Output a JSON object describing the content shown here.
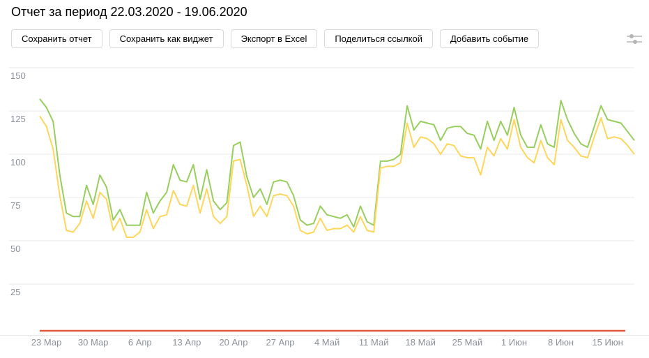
{
  "page": {
    "title": "Отчет за период 22.03.2020 - 19.06.2020"
  },
  "toolbar": {
    "buttons": [
      {
        "label": "Сохранить отчет"
      },
      {
        "label": "Сохранить как виджет"
      },
      {
        "label": "Экспорт в Excel"
      },
      {
        "label": "Поделиться ссылкой"
      },
      {
        "label": "Добавить событие"
      }
    ],
    "settings_icon": "sliders-icon",
    "icon_color": "#b5b5b5"
  },
  "chart_data": {
    "type": "line",
    "title": "",
    "xlabel": "",
    "ylabel": "",
    "period_start": "22.03.2020",
    "period_end": "19.06.2020",
    "num_days": 90,
    "ylim": [
      0,
      150
    ],
    "y_ticks": [
      25,
      50,
      75,
      100,
      125,
      150
    ],
    "x_tick_labels": [
      "23 Мар",
      "30 Мар",
      "6 Апр",
      "13 Апр",
      "20 Апр",
      "27 Апр",
      "4 Май",
      "11 Май",
      "18 Май",
      "25 Май",
      "1 Июн",
      "8 Июн",
      "15 Июн"
    ],
    "x_tick_day_indices": [
      1,
      8,
      15,
      22,
      29,
      36,
      43,
      50,
      57,
      64,
      71,
      78,
      85
    ],
    "grid": true,
    "legend": "none",
    "series": [
      {
        "id": "green",
        "color": "#97ce5e",
        "values": [
          132,
          127,
          119,
          88,
          66,
          64,
          64,
          82,
          71,
          88,
          81,
          62,
          68,
          59,
          59,
          59,
          78,
          66,
          73,
          78,
          94,
          85,
          84,
          94,
          74,
          91,
          73,
          68,
          72,
          105,
          107,
          87,
          75,
          80,
          71,
          84,
          85,
          84,
          76,
          62,
          59,
          60,
          70,
          65,
          64,
          63,
          65,
          58,
          70,
          61,
          59,
          96,
          96,
          97,
          100,
          128,
          114,
          119,
          118,
          117,
          108,
          115,
          116,
          116,
          112,
          111,
          103,
          119,
          108,
          119,
          111,
          127,
          111,
          104,
          104,
          117,
          106,
          104,
          131,
          120,
          112,
          106,
          104,
          116,
          128,
          120,
          119,
          118,
          113,
          108
        ]
      },
      {
        "id": "yellow",
        "color": "#ffd65c",
        "values": [
          122,
          116,
          103,
          76,
          56,
          55,
          60,
          73,
          63,
          78,
          74,
          56,
          63,
          52,
          52,
          55,
          68,
          57,
          64,
          65,
          79,
          71,
          70,
          82,
          66,
          80,
          64,
          60,
          64,
          96,
          97,
          82,
          64,
          70,
          64,
          76,
          77,
          76,
          70,
          56,
          54,
          55,
          63,
          56,
          57,
          57,
          59,
          55,
          64,
          56,
          55,
          92,
          93,
          93,
          95,
          118,
          104,
          110,
          109,
          106,
          100,
          106,
          105,
          99,
          98,
          98,
          88,
          104,
          99,
          109,
          103,
          120,
          104,
          98,
          95,
          108,
          98,
          94,
          120,
          108,
          104,
          99,
          98,
          110,
          121,
          109,
          110,
          109,
          105,
          100
        ]
      }
    ],
    "range_indicator_color": "#e0563a",
    "grid_color": "#e8e8e8",
    "tick_label_color": "#8c9097"
  }
}
